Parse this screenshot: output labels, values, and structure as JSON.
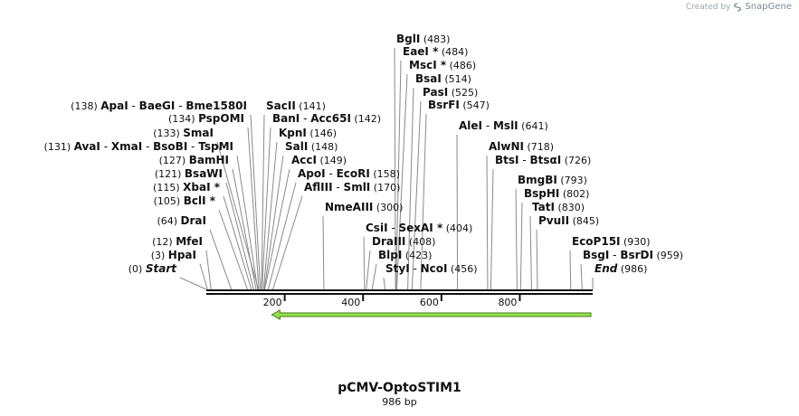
{
  "credit": {
    "prefix": "Created by",
    "brand": "SnapGene"
  },
  "map": {
    "title": "pCMV-OptoSTIM1",
    "length_label": "986 bp",
    "length": 986,
    "ticks": [
      {
        "bp": 200,
        "label": "200"
      },
      {
        "bp": 400,
        "label": "400"
      },
      {
        "bp": 600,
        "label": "600"
      },
      {
        "bp": 800,
        "label": "800"
      }
    ],
    "feature": {
      "name": "reverse-arrow",
      "start": 167,
      "end": 986,
      "direction": "reverse",
      "fill": "#98e04a",
      "stroke": "#3f7a1c"
    },
    "sites": [
      {
        "names": [
          "Start"
        ],
        "pos": 0,
        "pos_label": "(0)",
        "marker": true,
        "side": "left"
      },
      {
        "names": [
          "HpaI"
        ],
        "pos": 3,
        "pos_label": "(3)",
        "side": "left"
      },
      {
        "names": [
          "MfeI"
        ],
        "pos": 12,
        "pos_label": "(12)",
        "side": "left"
      },
      {
        "names": [
          "DraI"
        ],
        "pos": 64,
        "pos_label": "(64)",
        "side": "left"
      },
      {
        "names": [
          "BclI *"
        ],
        "pos": 105,
        "pos_label": "(105)",
        "side": "left"
      },
      {
        "names": [
          "XbaI *"
        ],
        "pos": 115,
        "pos_label": "(115)",
        "side": "left"
      },
      {
        "names": [
          "BsaWI"
        ],
        "pos": 121,
        "pos_label": "(121)",
        "side": "left"
      },
      {
        "names": [
          "BamHI"
        ],
        "pos": 127,
        "pos_label": "(127)",
        "side": "left"
      },
      {
        "names": [
          "AvaI",
          "XmaI",
          "BsoBI",
          "TspMI"
        ],
        "pos": 131,
        "pos_label": "(131)",
        "side": "left"
      },
      {
        "names": [
          "SmaI"
        ],
        "pos": 133,
        "pos_label": "(133)",
        "side": "left"
      },
      {
        "names": [
          "PspOMI"
        ],
        "pos": 134,
        "pos_label": "(134)",
        "side": "left"
      },
      {
        "names": [
          "ApaI",
          "BaeGI",
          "Bme1580I"
        ],
        "pos": 138,
        "pos_label": "(138)",
        "side": "left"
      },
      {
        "names": [
          "SacII"
        ],
        "pos": 141,
        "pos_label": "(141)",
        "side": "right"
      },
      {
        "names": [
          "BanI",
          "Acc65I"
        ],
        "pos": 142,
        "pos_label": "(142)",
        "side": "right"
      },
      {
        "names": [
          "KpnI"
        ],
        "pos": 146,
        "pos_label": "(146)",
        "side": "right"
      },
      {
        "names": [
          "SalI"
        ],
        "pos": 148,
        "pos_label": "(148)",
        "side": "right"
      },
      {
        "names": [
          "AccI"
        ],
        "pos": 149,
        "pos_label": "(149)",
        "side": "right"
      },
      {
        "names": [
          "ApoI",
          "EcoRI"
        ],
        "pos": 158,
        "pos_label": "(158)",
        "side": "right"
      },
      {
        "names": [
          "AflIII",
          "SmlI"
        ],
        "pos": 170,
        "pos_label": "(170)",
        "side": "right"
      },
      {
        "names": [
          "NmeAIII"
        ],
        "pos": 300,
        "pos_label": "(300)",
        "side": "right"
      },
      {
        "names": [
          "CsiI",
          "SexAI *"
        ],
        "pos": 404,
        "pos_label": "(404)",
        "side": "right"
      },
      {
        "names": [
          "DraIII"
        ],
        "pos": 408,
        "pos_label": "(408)",
        "side": "right"
      },
      {
        "names": [
          "BlpI"
        ],
        "pos": 423,
        "pos_label": "(423)",
        "side": "right"
      },
      {
        "names": [
          "StyI",
          "NcoI"
        ],
        "pos": 456,
        "pos_label": "(456)",
        "side": "right"
      },
      {
        "names": [
          "BglI"
        ],
        "pos": 483,
        "pos_label": "(483)",
        "side": "right"
      },
      {
        "names": [
          "EaeI *"
        ],
        "pos": 484,
        "pos_label": "(484)",
        "side": "right"
      },
      {
        "names": [
          "MscI *"
        ],
        "pos": 486,
        "pos_label": "(486)",
        "side": "right"
      },
      {
        "names": [
          "BsaI"
        ],
        "pos": 514,
        "pos_label": "(514)",
        "side": "right"
      },
      {
        "names": [
          "PasI"
        ],
        "pos": 525,
        "pos_label": "(525)",
        "side": "right"
      },
      {
        "names": [
          "BsrFI"
        ],
        "pos": 547,
        "pos_label": "(547)",
        "side": "right"
      },
      {
        "names": [
          "AleI",
          "MslI"
        ],
        "pos": 641,
        "pos_label": "(641)",
        "side": "right"
      },
      {
        "names": [
          "AlwNI"
        ],
        "pos": 718,
        "pos_label": "(718)",
        "side": "right"
      },
      {
        "names": [
          "BtsI",
          "BtsαI"
        ],
        "pos": 726,
        "pos_label": "(726)",
        "side": "right"
      },
      {
        "names": [
          "BmgBI"
        ],
        "pos": 793,
        "pos_label": "(793)",
        "side": "right"
      },
      {
        "names": [
          "BspHI"
        ],
        "pos": 802,
        "pos_label": "(802)",
        "side": "right"
      },
      {
        "names": [
          "TatI"
        ],
        "pos": 830,
        "pos_label": "(830)",
        "side": "right"
      },
      {
        "names": [
          "PvuII"
        ],
        "pos": 845,
        "pos_label": "(845)",
        "side": "right"
      },
      {
        "names": [
          "EcoP15I"
        ],
        "pos": 930,
        "pos_label": "(930)",
        "side": "right"
      },
      {
        "names": [
          "BsgI",
          "BsrDI"
        ],
        "pos": 959,
        "pos_label": "(959)",
        "side": "right"
      },
      {
        "names": [
          "End"
        ],
        "pos": 986,
        "pos_label": "(986)",
        "marker": true,
        "side": "right"
      }
    ]
  }
}
